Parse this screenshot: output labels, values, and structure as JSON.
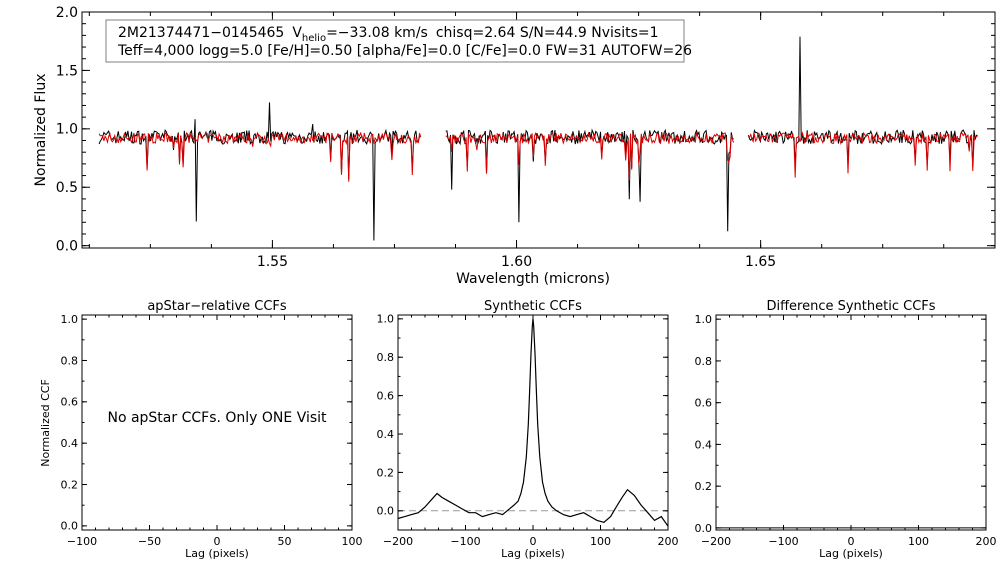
{
  "chart_data": [
    {
      "type": "line",
      "id": "spectrum",
      "xlabel": "Wavelength (microns)",
      "ylabel": "Normalized Flux",
      "xlim": [
        1.511,
        1.698
      ],
      "ylim": [
        -0.02,
        2.0
      ],
      "xticks": [
        {
          "v": 1.55,
          "label": "1.55"
        },
        {
          "v": 1.6,
          "label": "1.60"
        },
        {
          "v": 1.65,
          "label": "1.65"
        }
      ],
      "yticks": [
        {
          "v": 0.0,
          "label": "0.0"
        },
        {
          "v": 0.5,
          "label": "0.5"
        },
        {
          "v": 1.0,
          "label": "1.0"
        },
        {
          "v": 1.5,
          "label": "1.5"
        },
        {
          "v": 2.0,
          "label": "2.0"
        }
      ],
      "chips": [
        [
          1.5145,
          1.5805
        ],
        [
          1.5855,
          1.6445
        ],
        [
          1.6475,
          1.6945
        ]
      ],
      "series": [
        {
          "name": "observed",
          "color": "#000000"
        },
        {
          "name": "model",
          "color": "#e00000"
        }
      ],
      "annotation": {
        "star": "2M21374471−0145465",
        "v_symbol": "V",
        "v_sub": "helio",
        "v_value": "=−33.08 km/s",
        "stats": "chisq=2.64  S/N=44.9  Nvisits=1",
        "params": "Teff=4,000 logg=5.0 [Fe/H]=0.50 [alpha/Fe]=0.0 [C/Fe]=0.0 FW=31 AUTOFW=26"
      }
    },
    {
      "type": "line",
      "id": "apstar",
      "title": "apStar−relative CCFs",
      "xlabel": "Lag (pixels)",
      "ylabel": "Normalized CCF",
      "xlim": [
        -100,
        100
      ],
      "ylim": [
        -0.02,
        1.02
      ],
      "xticks": [
        {
          "v": -100,
          "label": "−100"
        },
        {
          "v": -50,
          "label": "−50"
        },
        {
          "v": 0,
          "label": "0"
        },
        {
          "v": 50,
          "label": "50"
        },
        {
          "v": 100,
          "label": "100"
        }
      ],
      "yticks": [
        {
          "v": 0.0,
          "label": "0.0"
        },
        {
          "v": 0.2,
          "label": "0.2"
        },
        {
          "v": 0.4,
          "label": "0.4"
        },
        {
          "v": 0.6,
          "label": "0.6"
        },
        {
          "v": 0.8,
          "label": "0.8"
        },
        {
          "v": 1.0,
          "label": "1.0"
        }
      ],
      "message": "No apStar CCFs.  Only ONE Visit",
      "series": []
    },
    {
      "type": "line",
      "id": "synthetic",
      "title": "Synthetic CCFs",
      "xlabel": "Lag (pixels)",
      "xlim": [
        -200,
        200
      ],
      "ylim": [
        -0.1,
        1.02
      ],
      "xticks": [
        {
          "v": -200,
          "label": "−200"
        },
        {
          "v": -100,
          "label": "−100"
        },
        {
          "v": 0,
          "label": "0"
        },
        {
          "v": 100,
          "label": "100"
        },
        {
          "v": 200,
          "label": "200"
        }
      ],
      "yticks": [
        {
          "v": 0.0,
          "label": "0.0"
        },
        {
          "v": 0.2,
          "label": "0.2"
        },
        {
          "v": 0.4,
          "label": "0.4"
        },
        {
          "v": 0.6,
          "label": "0.6"
        },
        {
          "v": 0.8,
          "label": "0.8"
        },
        {
          "v": 1.0,
          "label": "1.0"
        }
      ],
      "zero_line": 0.0,
      "series": [
        {
          "name": "synthetic-ccf",
          "x": [
            -200,
            -190,
            -180,
            -170,
            -160,
            -150,
            -142,
            -135,
            -125,
            -115,
            -105,
            -95,
            -85,
            -75,
            -65,
            -55,
            -45,
            -35,
            -28,
            -22,
            -18,
            -14,
            -10,
            -7,
            -5,
            -3,
            -1,
            0,
            1,
            3,
            5,
            7,
            10,
            14,
            18,
            22,
            28,
            35,
            45,
            55,
            65,
            75,
            85,
            95,
            105,
            115,
            125,
            132,
            140,
            150,
            160,
            170,
            180,
            190,
            200
          ],
          "y": [
            -0.04,
            -0.03,
            -0.02,
            -0.01,
            0.02,
            0.06,
            0.09,
            0.07,
            0.05,
            0.03,
            0.01,
            -0.01,
            -0.01,
            -0.03,
            -0.02,
            -0.01,
            -0.02,
            0.01,
            0.03,
            0.05,
            0.09,
            0.15,
            0.28,
            0.45,
            0.62,
            0.82,
            0.96,
            1.0,
            0.96,
            0.82,
            0.62,
            0.45,
            0.28,
            0.15,
            0.09,
            0.05,
            0.02,
            0.0,
            -0.02,
            -0.03,
            -0.02,
            -0.01,
            -0.03,
            -0.05,
            -0.06,
            -0.03,
            0.03,
            0.07,
            0.11,
            0.08,
            0.03,
            -0.01,
            -0.05,
            -0.03,
            -0.08
          ],
          "color": "#000000"
        }
      ]
    },
    {
      "type": "line",
      "id": "difference",
      "title": "Difference Synthetic CCFs",
      "xlabel": "Lag (pixels)",
      "xlim": [
        -200,
        200
      ],
      "ylim": [
        -0.01,
        1.02
      ],
      "xticks": [
        {
          "v": -200,
          "label": "−200"
        },
        {
          "v": -100,
          "label": "−100"
        },
        {
          "v": 0,
          "label": "0"
        },
        {
          "v": 100,
          "label": "100"
        },
        {
          "v": 200,
          "label": "200"
        }
      ],
      "yticks": [
        {
          "v": 0.0,
          "label": "0.0"
        },
        {
          "v": 0.2,
          "label": "0.2"
        },
        {
          "v": 0.4,
          "label": "0.4"
        },
        {
          "v": 0.6,
          "label": "0.6"
        },
        {
          "v": 0.8,
          "label": "0.8"
        },
        {
          "v": 1.0,
          "label": "1.0"
        }
      ],
      "series": [
        {
          "name": "difference-ccf",
          "x": [
            -200,
            200
          ],
          "y": [
            0.0,
            0.0
          ],
          "color": "#000000"
        }
      ]
    }
  ]
}
